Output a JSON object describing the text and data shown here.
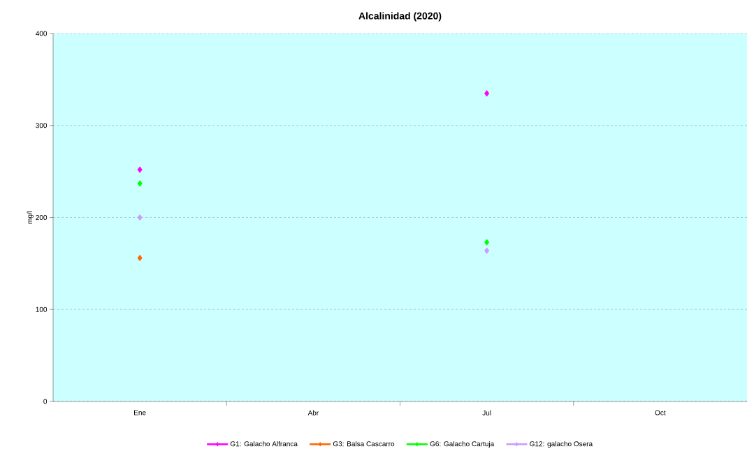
{
  "chart_data": {
    "type": "scatter",
    "title": "Alcalinidad (2020)",
    "ylabel": "mg/l",
    "categories": [
      "Ene",
      "Abr",
      "Jul",
      "Oct"
    ],
    "series": [
      {
        "name": "G1: Galacho Alfranca",
        "color": "#ff00ff",
        "values": [
          252,
          null,
          335,
          null
        ]
      },
      {
        "name": "G3: Balsa Cascarro",
        "color": "#ff6600",
        "values": [
          156,
          null,
          null,
          null
        ]
      },
      {
        "name": "G6: Galacho Cartuja",
        "color": "#00ff00",
        "values": [
          237,
          null,
          173,
          null
        ]
      },
      {
        "name": "G12: galacho Osera",
        "color": "#cc99ff",
        "values": [
          200,
          null,
          164,
          null
        ]
      }
    ],
    "ylim": [
      0,
      400
    ],
    "yticks": [
      0,
      100,
      200,
      300,
      400
    ],
    "grid": "y",
    "legend": "bottom",
    "marker": "diamond"
  }
}
